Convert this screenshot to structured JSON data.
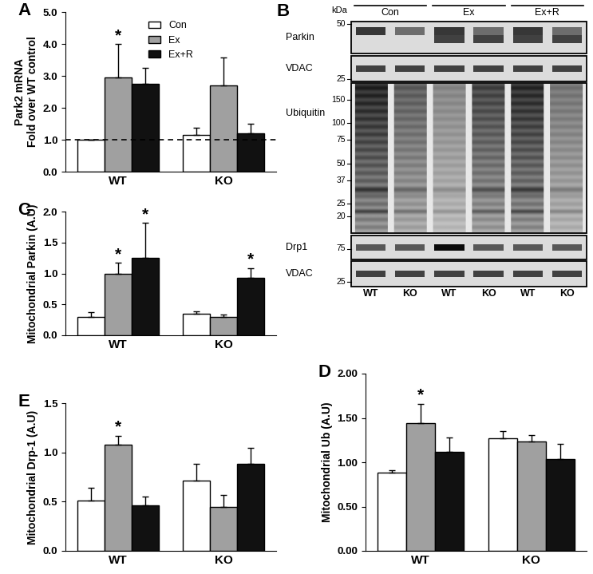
{
  "chart_data": [
    {
      "type": "bar",
      "title": "A",
      "ylabel": "Park2 mRNA\nFold over WT control",
      "categories": [
        "WT",
        "KO"
      ],
      "series": [
        {
          "name": "Con",
          "color": "#ffffff",
          "values": [
            1.0,
            1.15
          ],
          "errors": [
            0,
            0.22
          ]
        },
        {
          "name": "Ex",
          "color": "#a0a0a0",
          "values": [
            2.95,
            2.7
          ],
          "errors": [
            1.05,
            0.87
          ]
        },
        {
          "name": "Ex+R",
          "color": "#111111",
          "values": [
            2.75,
            1.2
          ],
          "errors": [
            0.5,
            0.3
          ]
        }
      ],
      "ylim": [
        0,
        5
      ],
      "yticks": [
        {
          "value": 0,
          "label": "0.0"
        },
        {
          "value": 1,
          "label": "1.0"
        },
        {
          "value": 2,
          "label": "2.0"
        },
        {
          "value": 3,
          "label": "3.0"
        },
        {
          "value": 4,
          "label": "4.0"
        },
        {
          "value": 5,
          "label": "5.0"
        }
      ],
      "hline": 1.0,
      "legend": "upper center",
      "annotations": [
        {
          "text": "*",
          "series": "Ex",
          "category": "WT"
        }
      ]
    },
    {
      "type": "bar",
      "title": "C",
      "ylabel": "Mitochondrial Parkin (A.U)",
      "categories": [
        "WT",
        "KO"
      ],
      "series": [
        {
          "name": "Con",
          "color": "#ffffff",
          "values": [
            0.3,
            0.35
          ],
          "errors": [
            0.07,
            0.04
          ]
        },
        {
          "name": "Ex",
          "color": "#a0a0a0",
          "values": [
            1.0,
            0.3
          ],
          "errors": [
            0.17,
            0.03
          ]
        },
        {
          "name": "Ex+R",
          "color": "#111111",
          "values": [
            1.25,
            0.93
          ],
          "errors": [
            0.57,
            0.16
          ]
        }
      ],
      "ylim": [
        0,
        2
      ],
      "yticks": [
        {
          "value": 0,
          "label": "0.0"
        },
        {
          "value": 0.5,
          "label": "0.5"
        },
        {
          "value": 1,
          "label": "1.0"
        },
        {
          "value": 1.5,
          "label": "1.5"
        },
        {
          "value": 2,
          "label": "2.0"
        }
      ],
      "annotations": [
        {
          "text": "*",
          "series": "Ex",
          "category": "WT"
        },
        {
          "text": "*",
          "series": "Ex+R",
          "category": "WT"
        },
        {
          "text": "*",
          "series": "Ex+R",
          "category": "KO"
        }
      ]
    },
    {
      "type": "bar",
      "title": "D",
      "ylabel": "Mitochondrial Ub (A.U)",
      "categories": [
        "WT",
        "KO"
      ],
      "series": [
        {
          "name": "Con",
          "color": "#ffffff",
          "values": [
            0.88,
            1.27
          ],
          "errors": [
            0.03,
            0.08
          ]
        },
        {
          "name": "Ex",
          "color": "#a0a0a0",
          "values": [
            1.44,
            1.23
          ],
          "errors": [
            0.22,
            0.08
          ]
        },
        {
          "name": "Ex+R",
          "color": "#111111",
          "values": [
            1.12,
            1.04
          ],
          "errors": [
            0.16,
            0.17
          ]
        }
      ],
      "ylim": [
        0,
        2
      ],
      "yticks": [
        {
          "value": 0,
          "label": "0.00"
        },
        {
          "value": 0.5,
          "label": "0.50"
        },
        {
          "value": 1,
          "label": "1.00"
        },
        {
          "value": 1.5,
          "label": "1.50"
        },
        {
          "value": 2,
          "label": "2.00"
        }
      ],
      "annotations": [
        {
          "text": "*",
          "series": "Ex",
          "category": "WT"
        }
      ]
    },
    {
      "type": "bar",
      "title": "E",
      "ylabel": "Mitochondrial Drp-1 (A.U)",
      "categories": [
        "WT",
        "KO"
      ],
      "series": [
        {
          "name": "Con",
          "color": "#ffffff",
          "values": [
            0.51,
            0.71
          ],
          "errors": [
            0.13,
            0.17
          ]
        },
        {
          "name": "Ex",
          "color": "#a0a0a0",
          "values": [
            1.08,
            0.45
          ],
          "errors": [
            0.09,
            0.12
          ]
        },
        {
          "name": "Ex+R",
          "color": "#111111",
          "values": [
            0.46,
            0.88
          ],
          "errors": [
            0.09,
            0.17
          ]
        }
      ],
      "ylim": [
        0,
        1.5
      ],
      "yticks": [
        {
          "value": 0,
          "label": "0.0"
        },
        {
          "value": 0.5,
          "label": "0.5"
        },
        {
          "value": 1,
          "label": "1.0"
        },
        {
          "value": 1.5,
          "label": "1.5"
        }
      ],
      "annotations": [
        {
          "text": "*",
          "series": "Ex",
          "category": "WT"
        }
      ]
    }
  ],
  "blot": {
    "title": "B",
    "unit": "kDa",
    "groups": [
      "Con",
      "Ex",
      "Ex+R"
    ],
    "lanes": [
      "WT",
      "KO",
      "WT",
      "KO",
      "WT",
      "KO"
    ],
    "blots": [
      {
        "name": "Parkin",
        "markers": [
          50
        ]
      },
      {
        "name": "VDAC",
        "markers": [
          25
        ]
      },
      {
        "name": "Ubiquitin",
        "markers": [
          150,
          100,
          75,
          50,
          37,
          25,
          20
        ]
      },
      {
        "name": "Drp1",
        "markers": [
          75
        ]
      },
      {
        "name": "VDAC",
        "markers": [
          25
        ]
      }
    ]
  }
}
